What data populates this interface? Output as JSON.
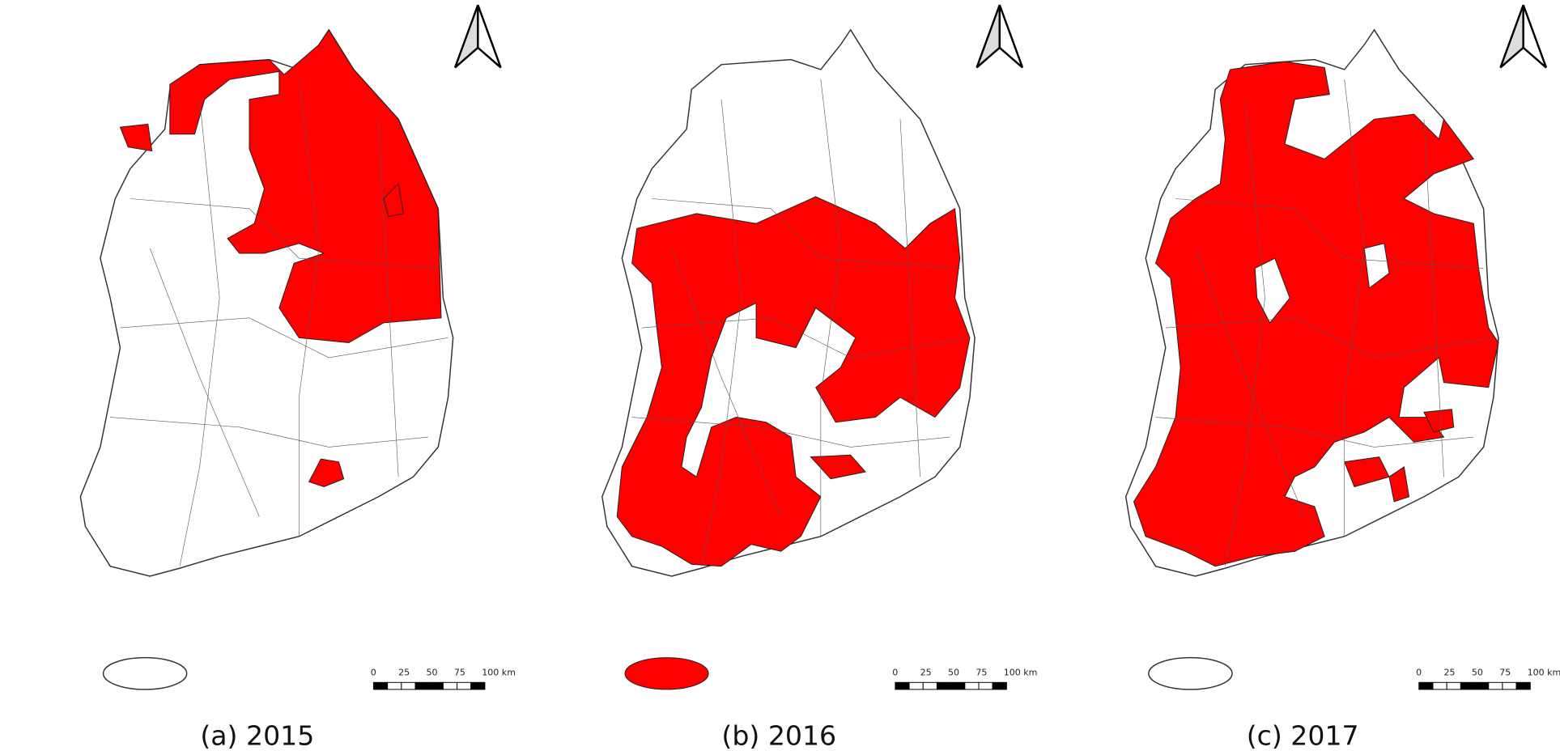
{
  "panels": [
    {
      "caption": "(a) 2015"
    },
    {
      "caption": "(b) 2016"
    },
    {
      "caption": "(c) 2017"
    }
  ],
  "scale_bar": {
    "labels": [
      "0",
      "25",
      "50",
      "75",
      "100 km"
    ]
  }
}
